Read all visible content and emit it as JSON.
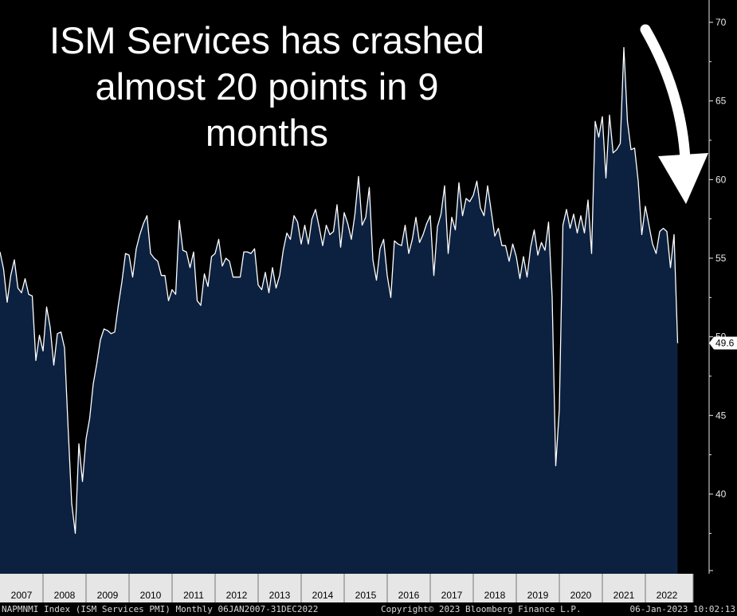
{
  "headline": {
    "lines": [
      "ISM Services has crashed",
      "almost 20 points in 9",
      "months"
    ]
  },
  "footer": {
    "left": "NAPMNMI Index (ISM Services PMI)  Monthly 06JAN2007-31DEC2022",
    "center": "Copyright© 2023 Bloomberg Finance L.P.",
    "right": "06-Jan-2023 10:02:13"
  },
  "colors": {
    "background": "#000000",
    "area_fill": "#0c2140",
    "line": "#ffffff",
    "axis_text": "#e8e8e8",
    "year_band": "#e6e6e6",
    "last_value_box": "#ffffff"
  },
  "annotation": {
    "icon": "down-arrow-icon"
  },
  "chart_data": {
    "type": "area",
    "title": "",
    "xlabel": "",
    "ylabel": "",
    "ylim": [
      35,
      70.5
    ],
    "y_ticks": [
      40,
      45,
      50,
      55,
      60,
      65,
      70
    ],
    "y_axis_side": "right",
    "grid": false,
    "x_tick_labels": [
      "2007",
      "2008",
      "2009",
      "2010",
      "2011",
      "2012",
      "2013",
      "2014",
      "2015",
      "2016",
      "2017",
      "2018",
      "2019",
      "2020",
      "2021",
      "2022"
    ],
    "last_value_label": "49.6",
    "series": [
      {
        "start": "2007-01",
        "frequency": "monthly",
        "values": [
          55.4,
          54.3,
          52.2,
          53.9,
          54.9,
          53.1,
          52.8,
          53.7,
          52.7,
          52.6,
          48.5,
          50.1,
          49.1,
          51.9,
          50.6,
          48.2,
          50.2,
          50.3,
          49.3,
          44.2,
          39.4,
          37.5,
          43.2,
          40.8,
          43.5,
          44.8,
          47.0,
          48.3,
          49.8,
          50.5,
          50.4,
          50.2,
          50.3,
          52.0,
          53.5,
          55.3,
          55.2,
          53.8,
          55.6,
          56.5,
          57.2,
          57.7,
          55.3,
          55.0,
          54.8,
          53.9,
          53.9,
          52.3,
          53.0,
          52.7,
          57.4,
          55.5,
          55.4,
          54.4,
          55.4,
          52.3,
          52.0,
          54.0,
          53.2,
          55.1,
          55.3,
          56.2,
          54.5,
          55.0,
          54.8,
          53.8,
          53.8,
          53.8,
          55.4,
          55.4,
          55.3,
          55.6,
          53.3,
          53.0,
          54.1,
          52.8,
          54.4,
          53.1,
          53.9,
          55.5,
          56.6,
          56.2,
          57.7,
          57.3,
          55.9,
          57.1,
          55.9,
          57.5,
          58.1,
          57.0,
          55.8,
          57.1,
          56.5,
          56.7,
          58.4,
          55.7,
          57.9,
          57.2,
          56.2,
          57.8,
          60.2,
          57.1,
          57.6,
          59.5,
          54.9,
          53.6,
          55.6,
          56.2,
          53.9,
          52.5,
          56.1,
          55.9,
          55.8,
          57.1,
          55.3,
          56.2,
          57.6,
          56.0,
          56.5,
          57.2,
          57.7,
          53.9,
          57.0,
          57.8,
          59.6,
          55.3,
          57.6,
          56.8,
          59.8,
          57.7,
          58.8,
          58.6,
          59.0,
          59.9,
          58.2,
          57.7,
          59.6,
          58.0,
          56.4,
          56.9,
          55.8,
          55.8,
          54.8,
          55.9,
          55.1,
          53.7,
          55.1,
          53.8,
          55.7,
          56.8,
          55.2,
          56.0,
          55.5,
          57.3,
          52.5,
          41.8,
          45.4,
          57.1,
          58.1,
          56.9,
          57.8,
          56.6,
          57.7,
          56.6,
          58.7,
          55.3,
          63.7,
          62.7,
          64.0,
          60.1,
          64.1,
          61.7,
          61.9,
          62.3,
          68.4,
          63.7,
          61.9,
          62.0,
          59.9,
          56.5,
          58.3,
          57.1,
          55.9,
          55.3,
          56.7,
          56.9,
          56.7,
          54.4,
          56.5,
          49.6
        ]
      }
    ]
  }
}
